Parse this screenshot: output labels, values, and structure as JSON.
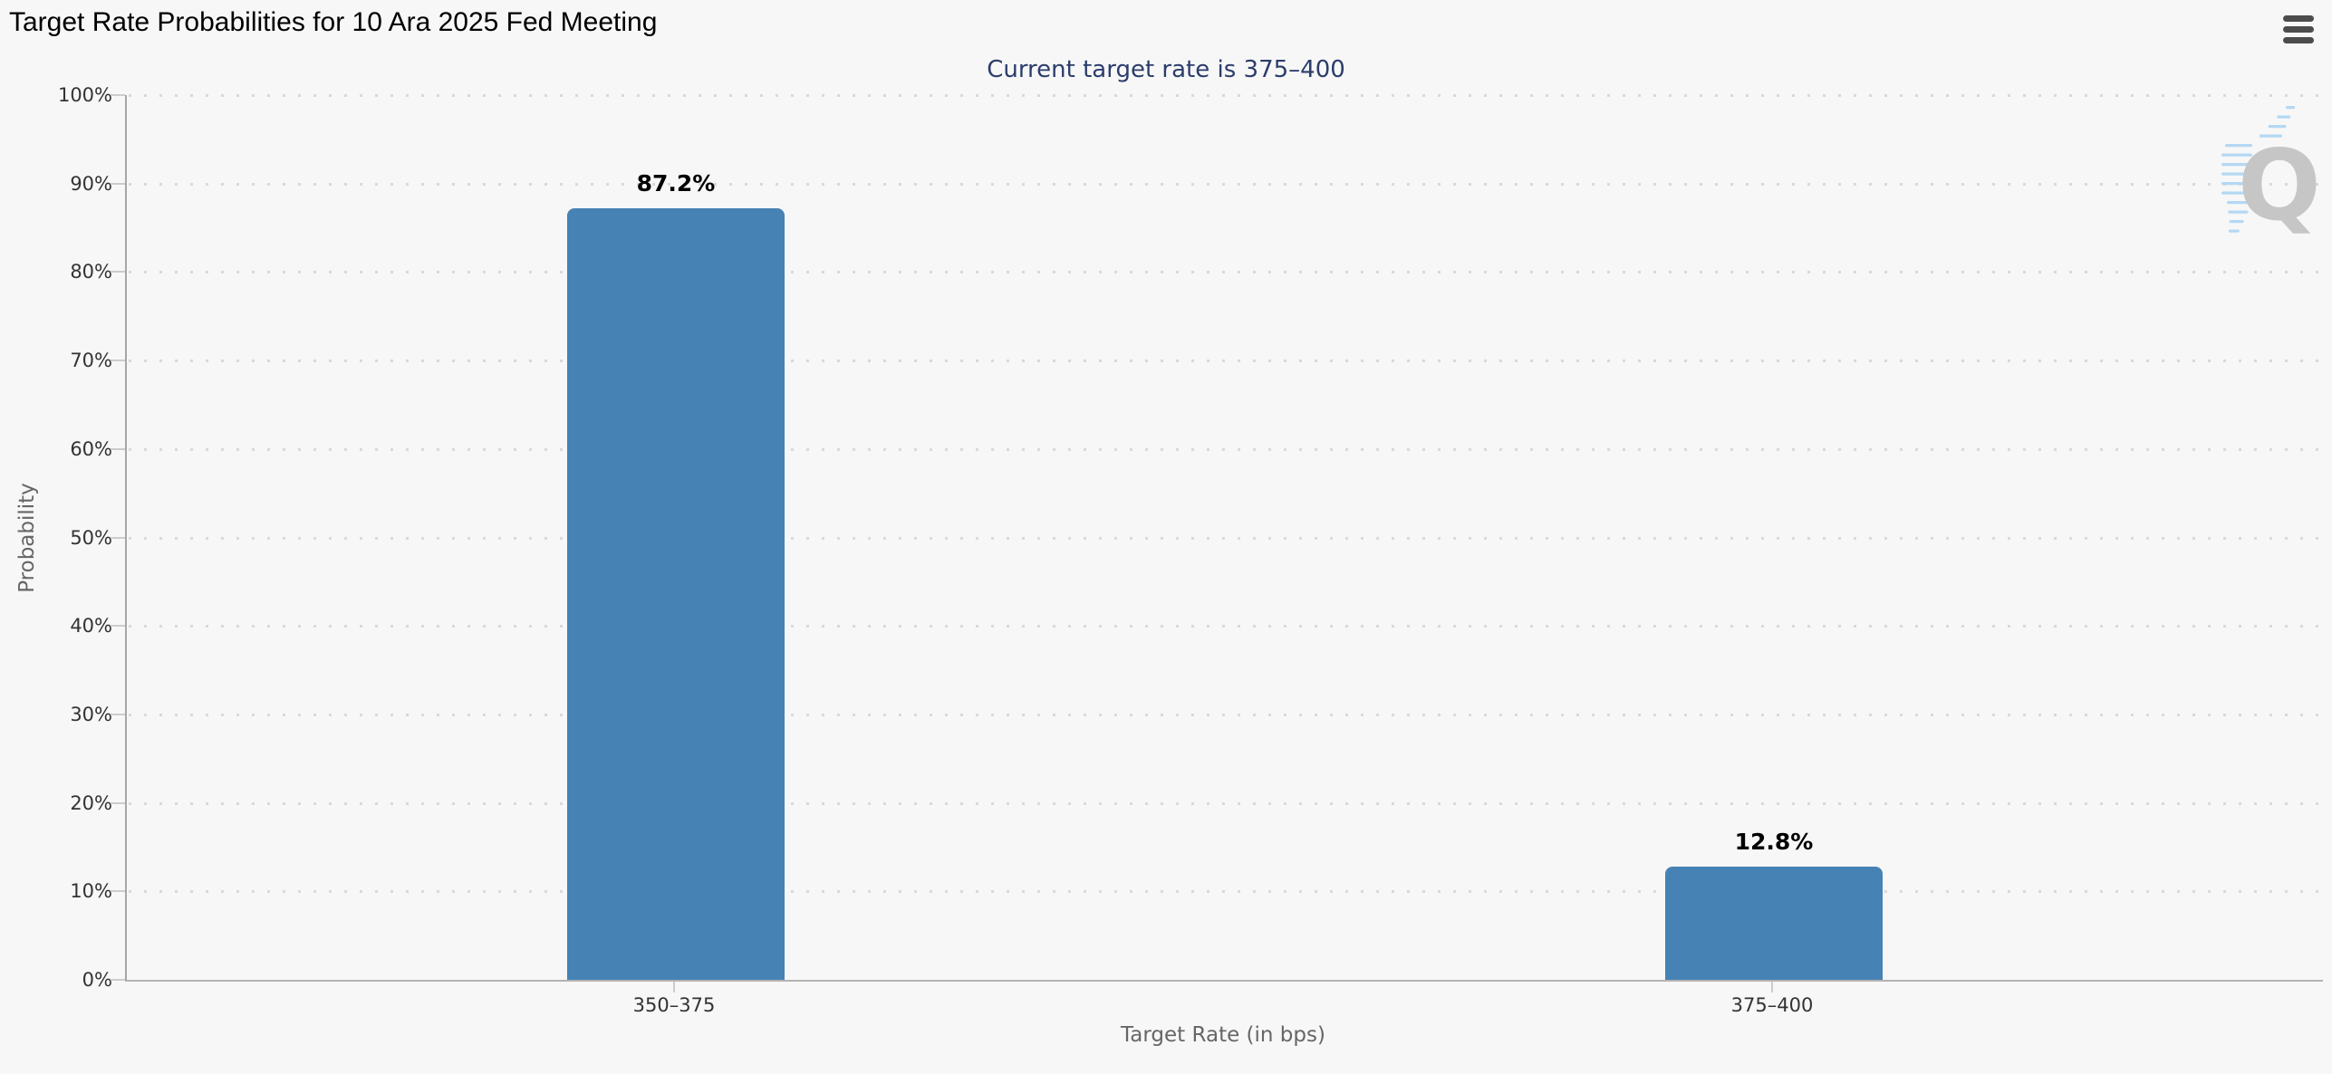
{
  "header": {
    "title": "Target Rate Probabilities for 10 Ara 2025 Fed Meeting"
  },
  "chart_data": {
    "type": "bar",
    "title": "Target Rate Probabilities for 10 Ara 2025 Fed Meeting",
    "subtitle": "Current target rate is 375–400",
    "xlabel": "Target Rate (in bps)",
    "ylabel": "Probability",
    "categories": [
      "350–375",
      "375–400"
    ],
    "values": [
      87.2,
      12.8
    ],
    "value_labels": [
      "87.2%",
      "12.8%"
    ],
    "ylim": [
      0,
      100
    ],
    "ytick_step": 10,
    "ytick_suffix": "%",
    "grid": "horizontal-dotted",
    "legend": "none",
    "bar_color": "#4682b4"
  },
  "icons": {
    "menu": "hamburger-icon",
    "watermark_letter": "Q"
  },
  "colors": {
    "background": "#f7f7f7",
    "title": "#000000",
    "subtitle": "#2b3d6b",
    "bar": "#4682b4",
    "grid_dot": "#d9d9d9",
    "axis_line": "#a6a6a6",
    "tick_label": "#333333",
    "axis_title": "#666666",
    "value_label": "#000000",
    "menu_icon": "#4c4c4c",
    "watermark_gray": "#c6c6c6",
    "watermark_blue": "#b5d8f3"
  }
}
